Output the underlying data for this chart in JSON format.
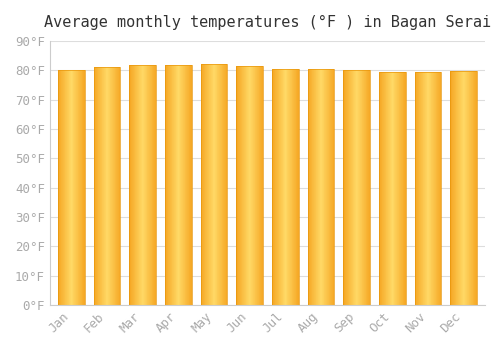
{
  "months": [
    "Jan",
    "Feb",
    "Mar",
    "Apr",
    "May",
    "Jun",
    "Jul",
    "Aug",
    "Sep",
    "Oct",
    "Nov",
    "Dec"
  ],
  "values": [
    80.1,
    81.1,
    81.7,
    81.9,
    82.0,
    81.3,
    80.4,
    80.4,
    80.1,
    79.5,
    79.3,
    79.7
  ],
  "bar_color_left": "#F5A623",
  "bar_color_mid": "#FFD966",
  "bar_edge_color": "#E8960A",
  "background_color": "#FFFFFF",
  "plot_background": "#FFFFFF",
  "title": "Average monthly temperatures (°F ) in Bagan Serai",
  "title_fontsize": 11,
  "tick_fontsize": 9,
  "ylim": [
    0,
    90
  ],
  "yticks": [
    0,
    10,
    20,
    30,
    40,
    50,
    60,
    70,
    80,
    90
  ],
  "ytick_labels": [
    "0°F",
    "10°F",
    "20°F",
    "30°F",
    "40°F",
    "50°F",
    "60°F",
    "70°F",
    "80°F",
    "90°F"
  ],
  "grid_color": "#DDDDDD",
  "label_color": "#AAAAAA",
  "spine_color": "#CCCCCC"
}
